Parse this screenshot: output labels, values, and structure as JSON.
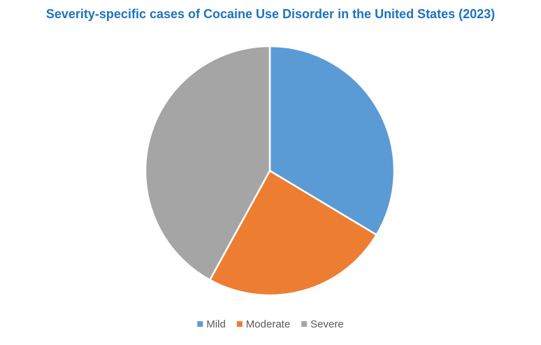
{
  "chart_data": {
    "type": "pie",
    "title": "Severity-specific cases of Cocaine Use Disorder in the United States (2023)",
    "categories": [
      "Mild",
      "Moderate",
      "Severe"
    ],
    "values": [
      33.6,
      24.4,
      42.0
    ],
    "colors": [
      "#5b9bd5",
      "#ed7d31",
      "#a5a5a5"
    ],
    "legend": "bottom"
  }
}
